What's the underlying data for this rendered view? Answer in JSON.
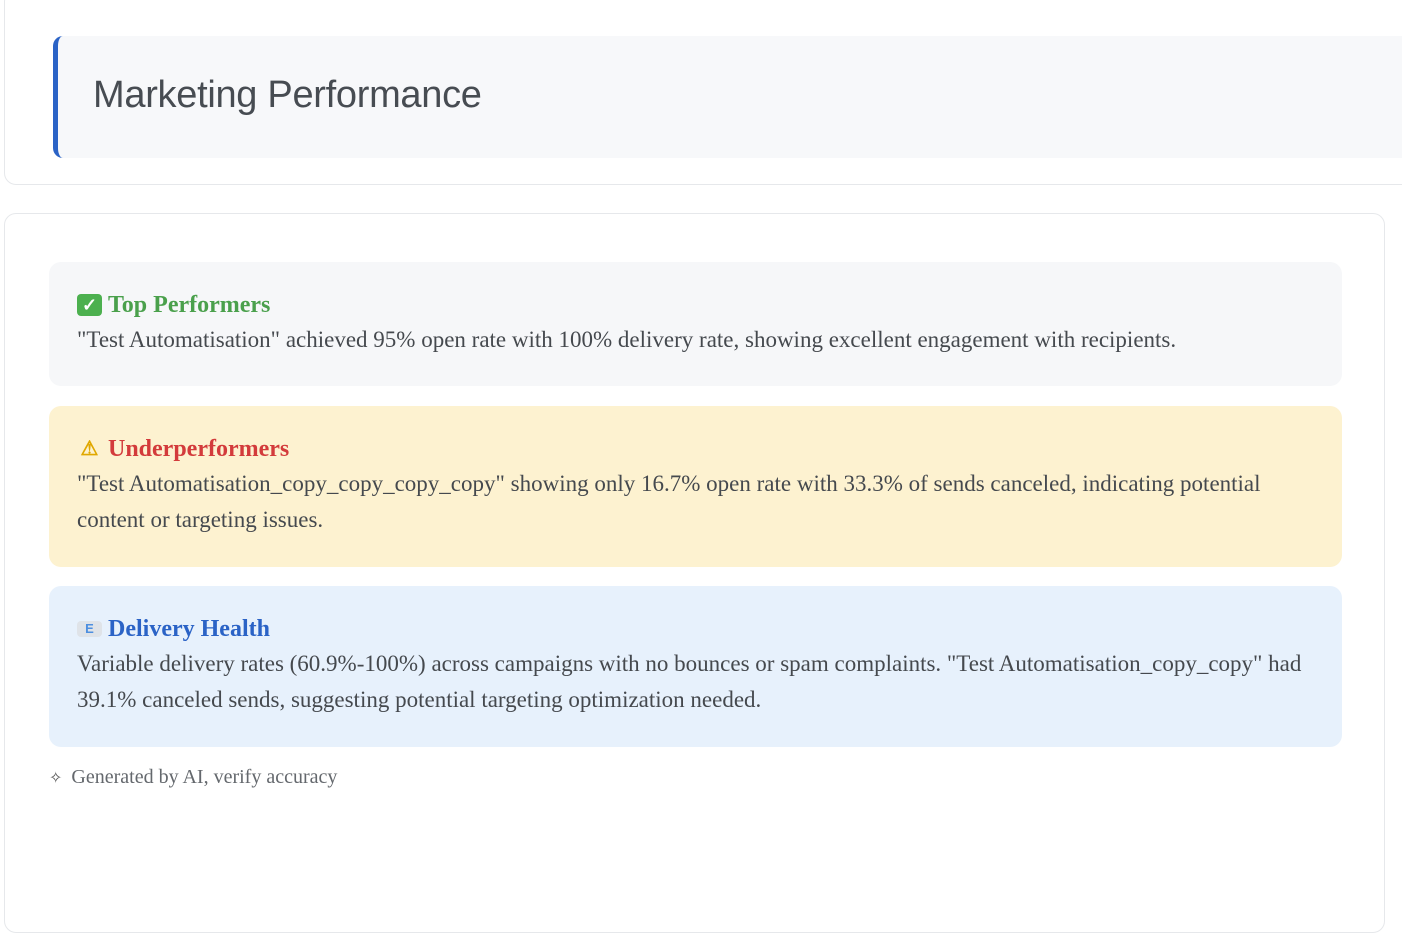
{
  "header": {
    "title": "Marketing Performance",
    "accent_color": "#2b63c6"
  },
  "insights": [
    {
      "icon": "check-mark-icon",
      "glyph": "✓",
      "title": "Top Performers",
      "body": "\"Test Automatisation\" achieved 95% open rate with 100% delivery rate, showing excellent engagement with recipients.",
      "color": "#4aa04c"
    },
    {
      "icon": "warning-icon",
      "glyph": "⚠",
      "title": "Underperformers",
      "body": "\"Test Automatisation_copy_copy_copy_copy\" showing only 16.7% open rate with 33.3% of sends canceled, indicating potential content or targeting issues.",
      "color": "#d33b3b"
    },
    {
      "icon": "envelope-icon",
      "glyph": "E",
      "title": "Delivery Health",
      "body": "Variable delivery rates (60.9%-100%) across campaigns with no bounces or spam complaints. \"Test Automatisation_copy_copy\" had 39.1% canceled sends, suggesting potential targeting optimization needed.",
      "color": "#2b63c6"
    }
  ],
  "footer": {
    "icon": "sparkle-icon",
    "glyph": "✧",
    "text": "Generated by AI, verify accuracy"
  }
}
